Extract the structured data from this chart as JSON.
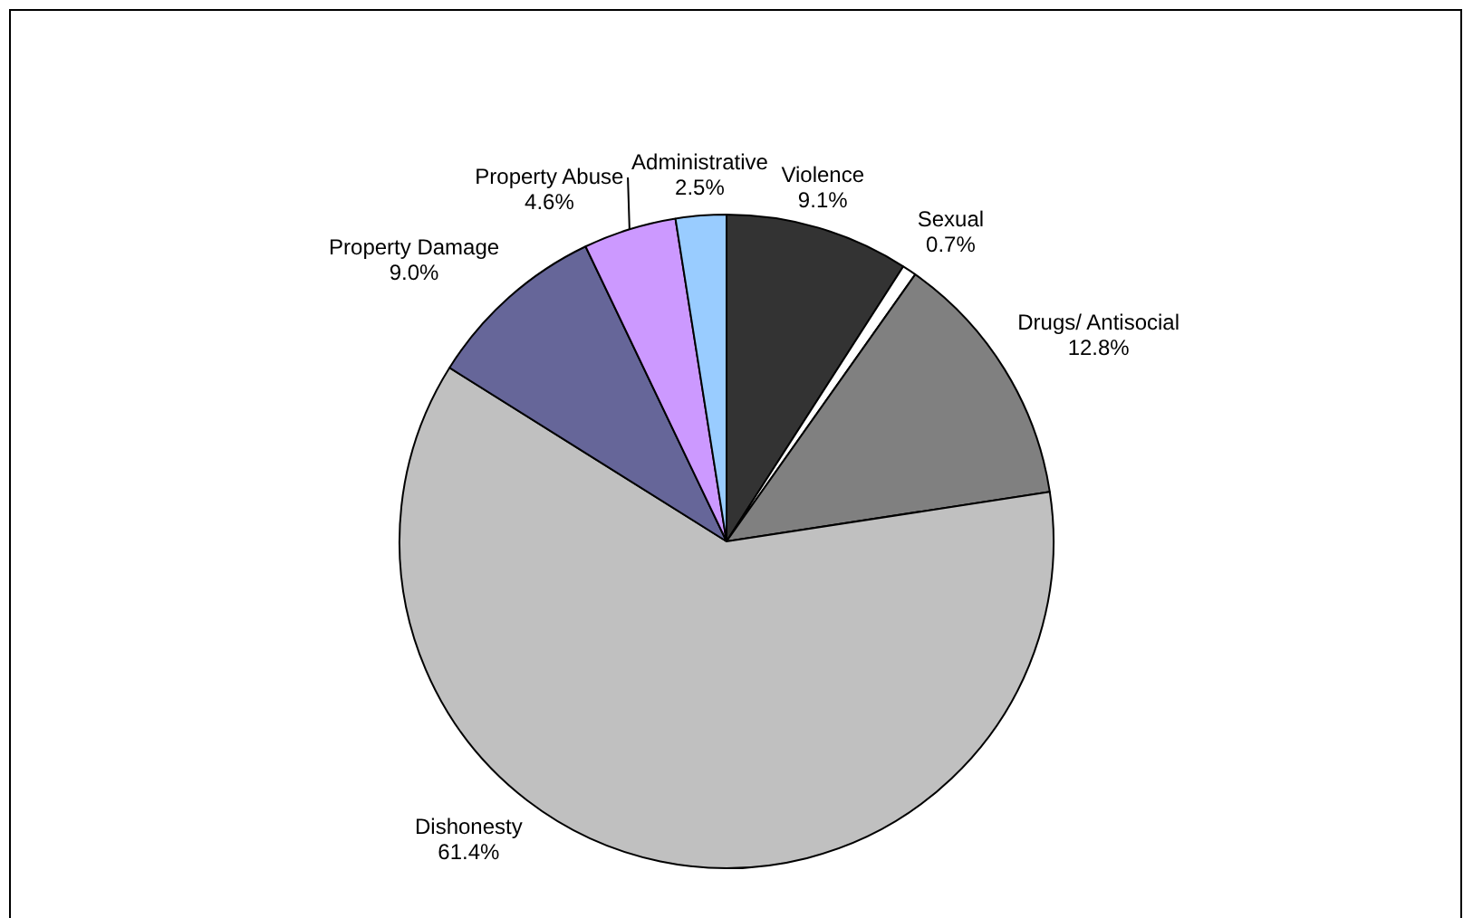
{
  "chart_data": {
    "type": "pie",
    "categories": [
      "Violence",
      "Sexual",
      "Drugs/ Antisocial",
      "Dishonesty",
      "Property Damage",
      "Property Abuse",
      "Administrative"
    ],
    "values": [
      9.1,
      0.7,
      12.8,
      61.4,
      9.0,
      4.6,
      2.5
    ],
    "value_labels": [
      "9.1%",
      "0.7%",
      "12.8%",
      "61.4%",
      "9.0%",
      "4.6%",
      "2.5%"
    ],
    "colors": [
      "#333333",
      "#ffffff",
      "#808080",
      "#c0c0c0",
      "#666699",
      "#cc99ff",
      "#99ccff"
    ],
    "legend": false
  }
}
